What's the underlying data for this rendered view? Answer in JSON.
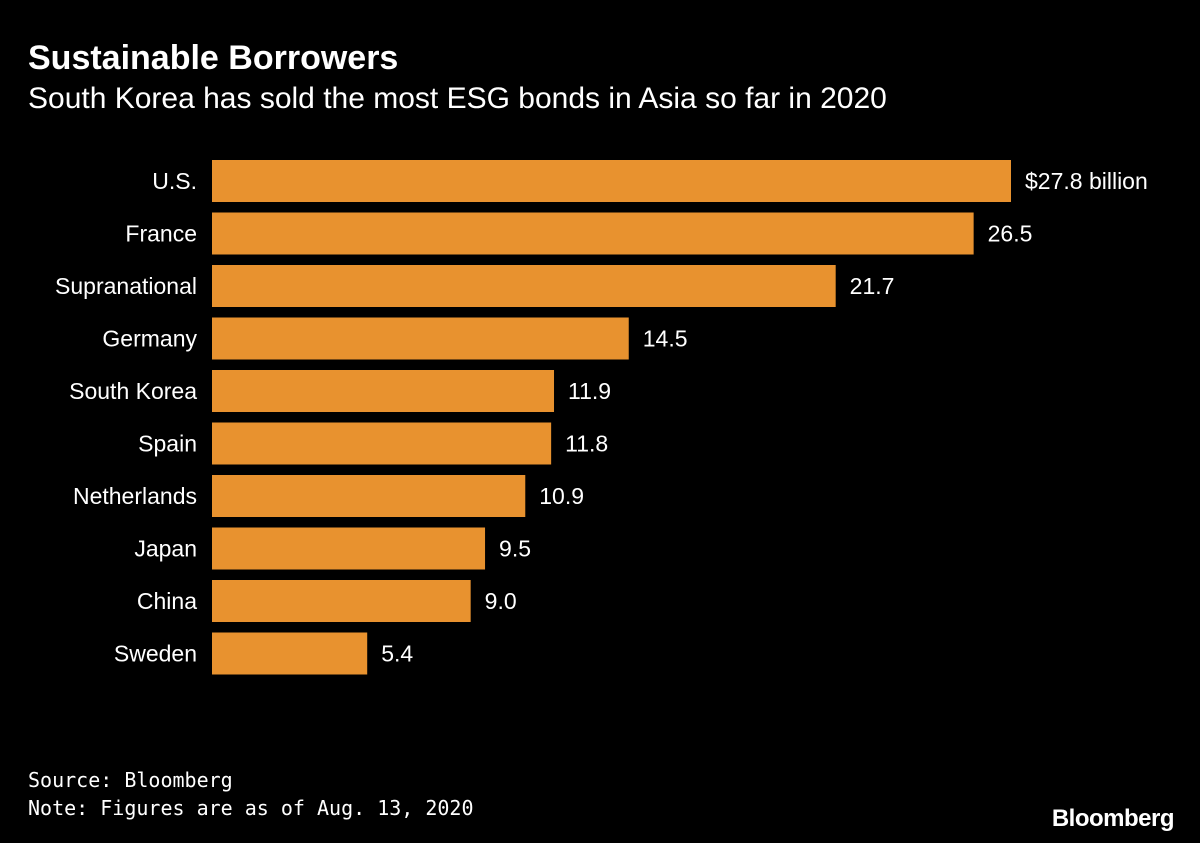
{
  "header": {
    "title": "Sustainable Borrowers",
    "subtitle": "South Korea has sold the most ESG bonds in Asia so far in 2020"
  },
  "chart_data": {
    "type": "bar",
    "orientation": "horizontal",
    "categories": [
      "U.S.",
      "France",
      "Supranational",
      "Germany",
      "South Korea",
      "Spain",
      "Netherlands",
      "Japan",
      "China",
      "Sweden"
    ],
    "values": [
      27.8,
      26.5,
      21.7,
      14.5,
      11.9,
      11.8,
      10.9,
      9.5,
      9.0,
      5.4
    ],
    "value_labels": [
      "$27.8 billion",
      "26.5",
      "21.7",
      "14.5",
      "11.9",
      "11.8",
      "10.9",
      "9.5",
      "9.0",
      "5.4"
    ],
    "xlim": [
      0,
      27.8
    ],
    "grid": false,
    "bar_color": "#e8922f"
  },
  "footer": {
    "source": "Source: Bloomberg",
    "note": "Note: Figures are as of Aug. 13, 2020",
    "brand": "Bloomberg"
  }
}
